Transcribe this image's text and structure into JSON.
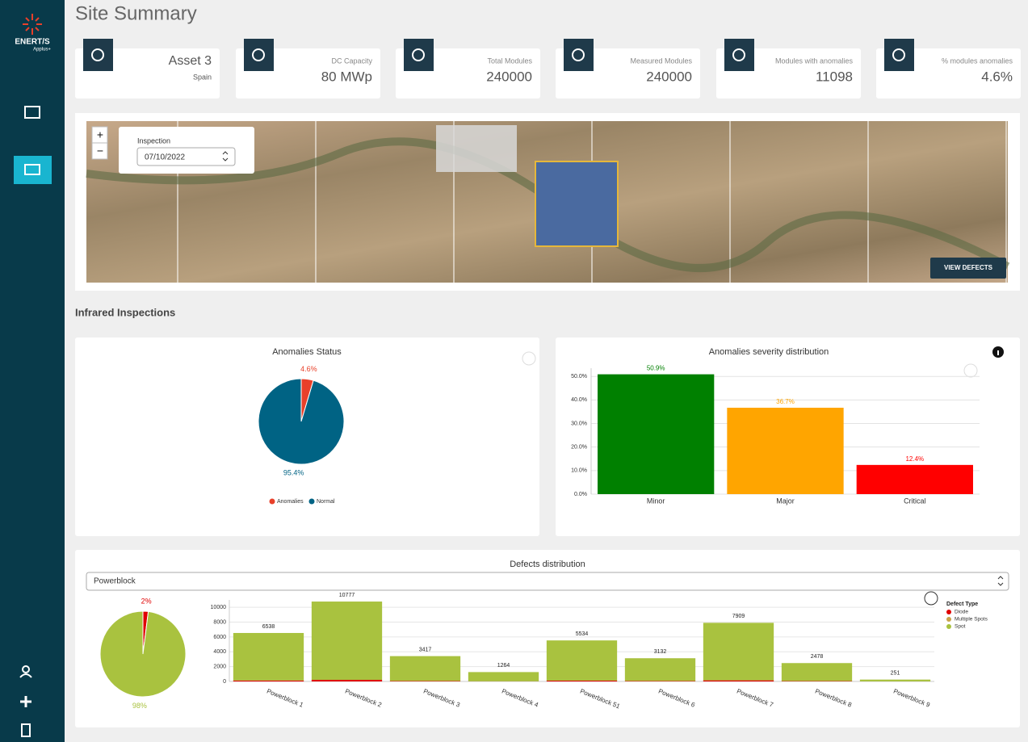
{
  "sidebar": {
    "brand": "ENERT/S",
    "brand_sub": "Applus+"
  },
  "header": {
    "title": "Site Summary"
  },
  "cards": [
    {
      "value": "Asset 3",
      "label": "Spain"
    },
    {
      "label": "DC Capacity",
      "value": "80 MWp"
    },
    {
      "label": "Total Modules",
      "value": "240000"
    },
    {
      "label": "Measured Modules",
      "value": "240000"
    },
    {
      "label": "Modules with anomalies",
      "value": "11098"
    },
    {
      "label": "% modules anomalies",
      "value": "4.6%"
    }
  ],
  "map": {
    "inspection_label": "Inspection",
    "inspection_date": "07/10/2022",
    "zoom_in": "+",
    "zoom_out": "−",
    "button": "VIEW DEFECTS"
  },
  "section_title": "Infrared Inspections",
  "defects_filter": "Powerblock",
  "chart_data": [
    {
      "type": "pie",
      "title": "Anomalies Status",
      "categories": [
        "Anomalies",
        "Normal"
      ],
      "values": [
        4.6,
        95.4
      ],
      "value_labels": [
        "4.6%",
        "95.4%"
      ],
      "colors": [
        "#e8402a",
        "#006384"
      ],
      "legend": "bottom"
    },
    {
      "type": "bar",
      "title": "Anomalies severity distribution",
      "categories": [
        "Minor",
        "Major",
        "Critical"
      ],
      "values": [
        50.9,
        36.7,
        12.4
      ],
      "value_labels": [
        "50.9%",
        "36.7%",
        "12.4%"
      ],
      "colors": [
        "#008000",
        "#ffa500",
        "#ff0000"
      ],
      "ylim": [
        0,
        53.5
      ],
      "yticks": [
        {
          "value": 0,
          "label": "0.0%"
        },
        {
          "value": 10,
          "label": "10.0%"
        },
        {
          "value": 20,
          "label": "20.0%"
        },
        {
          "value": 30,
          "label": "30.0%"
        },
        {
          "value": 40,
          "label": "40.0%"
        },
        {
          "value": 50,
          "label": "50.0%"
        }
      ],
      "grid": true
    },
    {
      "type": "pie",
      "values": [
        2,
        98
      ],
      "value_labels": [
        "2%",
        "98%"
      ],
      "colors": [
        "#e00000",
        "#a9c23f"
      ]
    },
    {
      "type": "stacked-bar",
      "title": "Defects distribution",
      "categories": [
        "Powerblock 1",
        "Powerblock 2",
        "Powerblock 3",
        "Powerblock 4",
        "Powerblock 51",
        "Powerblock 6",
        "Powerblock 7",
        "Powerblock 8",
        "Powerblock 9"
      ],
      "series": [
        {
          "name": "Diode",
          "color": "#e00000",
          "values": [
            130,
            215,
            60,
            20,
            110,
            60,
            150,
            50,
            5
          ]
        },
        {
          "name": "Multiple Spots",
          "color": "#c9a34a",
          "values": [
            0,
            0,
            0,
            0,
            0,
            0,
            0,
            0,
            0
          ]
        },
        {
          "name": "Spot",
          "color": "#a9c23f",
          "values": [
            6408,
            10562,
            3357,
            1244,
            5424,
            3072,
            7759,
            2428,
            246
          ]
        }
      ],
      "totals": [
        6538,
        10777,
        3417,
        1264,
        5534,
        3132,
        7909,
        2478,
        251
      ],
      "legend_title": "Defect Type",
      "legend": "right",
      "ylim": [
        0,
        11000
      ],
      "yticks": [
        0,
        2000,
        4000,
        6000,
        8000,
        10000
      ],
      "grid": true
    }
  ]
}
